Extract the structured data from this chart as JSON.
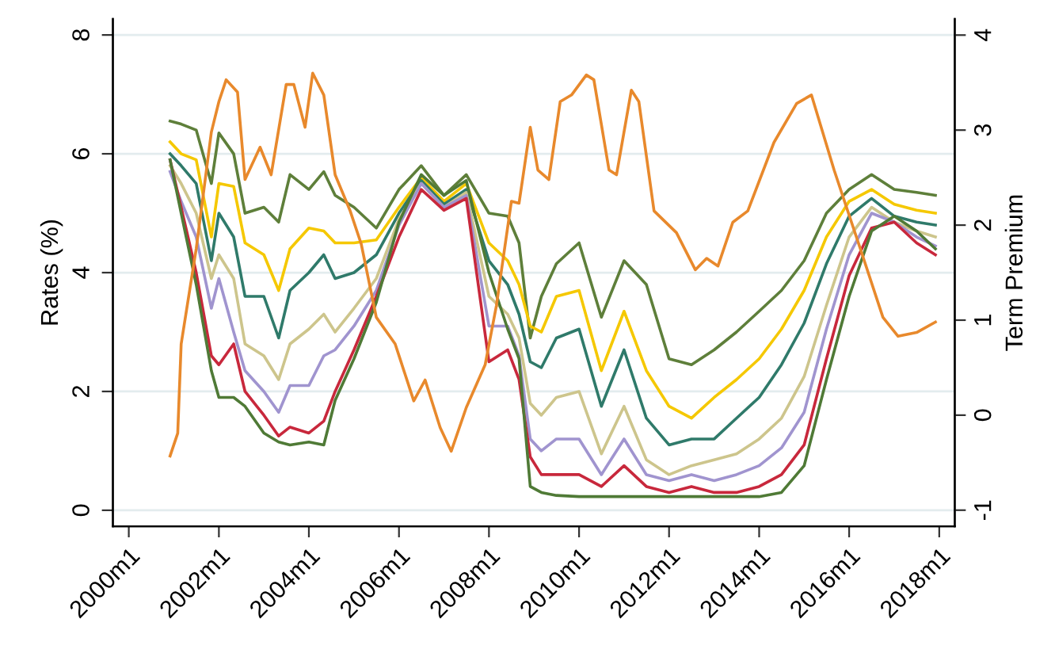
{
  "chart_data": {
    "type": "line",
    "ylabel": "Rates (%)",
    "y2label": "Term Premium",
    "x": [
      "2000-12",
      "2001-03",
      "2001-07",
      "2001-11",
      "2002-01",
      "2002-05",
      "2002-08",
      "2003-01",
      "2003-05",
      "2003-08",
      "2004-01",
      "2004-05",
      "2004-08",
      "2005-01",
      "2005-07",
      "2006-01",
      "2006-07",
      "2007-01",
      "2007-07",
      "2008-01",
      "2008-06",
      "2008-09",
      "2008-12",
      "2009-03",
      "2009-07",
      "2010-01",
      "2010-07",
      "2011-01",
      "2011-07",
      "2012-01",
      "2012-07",
      "2013-01",
      "2013-07",
      "2014-01",
      "2014-07",
      "2015-01",
      "2015-07",
      "2016-01",
      "2016-07",
      "2017-01",
      "2017-07",
      "2017-12"
    ],
    "series": [
      {
        "color": "#5e7f3a",
        "values": [
          6.55,
          6.5,
          6.4,
          5.5,
          6.35,
          6.0,
          5.0,
          5.1,
          4.85,
          5.65,
          5.4,
          5.7,
          5.3,
          5.1,
          4.75,
          5.4,
          5.8,
          5.3,
          5.65,
          5.0,
          4.95,
          4.5,
          2.9,
          3.6,
          4.15,
          4.5,
          3.25,
          4.2,
          3.8,
          2.55,
          2.45,
          2.7,
          3.0,
          3.35,
          3.7,
          4.2,
          5.0,
          5.4,
          5.65,
          5.4,
          5.35,
          5.3
        ]
      },
      {
        "color": "#f5c800",
        "values": [
          6.2,
          6.0,
          5.9,
          4.6,
          5.5,
          5.45,
          4.5,
          4.3,
          3.7,
          4.4,
          4.75,
          4.7,
          4.5,
          4.5,
          4.55,
          5.1,
          5.6,
          5.2,
          5.5,
          4.5,
          4.2,
          3.8,
          3.1,
          3.0,
          3.6,
          3.7,
          2.35,
          3.35,
          2.35,
          1.75,
          1.55,
          1.9,
          2.2,
          2.55,
          3.05,
          3.7,
          4.6,
          5.2,
          5.4,
          5.15,
          5.05,
          5.0
        ]
      },
      {
        "color": "#2f7a6a",
        "values": [
          6.0,
          5.8,
          5.5,
          4.2,
          5.0,
          4.6,
          3.6,
          3.6,
          2.9,
          3.7,
          4.0,
          4.3,
          3.9,
          4.0,
          4.3,
          5.0,
          5.55,
          5.15,
          5.4,
          4.2,
          3.8,
          3.3,
          2.5,
          2.4,
          2.9,
          3.05,
          1.75,
          2.7,
          1.55,
          1.1,
          1.2,
          1.2,
          1.55,
          1.9,
          2.45,
          3.15,
          4.15,
          4.95,
          5.25,
          4.95,
          4.85,
          4.8
        ]
      },
      {
        "color": "#cdc58c",
        "values": [
          5.8,
          5.5,
          5.0,
          3.9,
          4.3,
          3.9,
          2.8,
          2.6,
          2.2,
          2.8,
          3.05,
          3.3,
          3.0,
          3.4,
          3.9,
          4.9,
          5.5,
          5.1,
          5.35,
          3.6,
          3.3,
          2.9,
          1.8,
          1.6,
          1.9,
          2.0,
          0.95,
          1.75,
          0.85,
          0.6,
          0.75,
          0.85,
          0.95,
          1.2,
          1.55,
          2.25,
          3.45,
          4.6,
          5.1,
          4.85,
          4.7,
          4.6
        ]
      },
      {
        "color": "#a094cf",
        "values": [
          5.7,
          5.2,
          4.6,
          3.4,
          3.9,
          3.0,
          2.35,
          2.0,
          1.65,
          2.1,
          2.1,
          2.6,
          2.7,
          3.1,
          3.7,
          4.8,
          5.5,
          5.1,
          5.3,
          3.1,
          3.1,
          2.6,
          1.2,
          1.0,
          1.2,
          1.2,
          0.6,
          1.2,
          0.6,
          0.5,
          0.6,
          0.5,
          0.6,
          0.75,
          1.05,
          1.65,
          3.05,
          4.3,
          5.0,
          4.85,
          4.6,
          4.45
        ]
      },
      {
        "color": "#c8283c",
        "values": [
          5.9,
          5.1,
          4.0,
          2.6,
          2.45,
          2.8,
          2.0,
          1.6,
          1.25,
          1.4,
          1.3,
          1.5,
          2.0,
          2.7,
          3.6,
          4.6,
          5.4,
          5.05,
          5.25,
          2.5,
          2.7,
          2.2,
          0.9,
          0.6,
          0.6,
          0.6,
          0.4,
          0.75,
          0.4,
          0.3,
          0.4,
          0.3,
          0.3,
          0.4,
          0.6,
          1.1,
          2.55,
          3.95,
          4.75,
          4.85,
          4.5,
          4.3
        ]
      },
      {
        "color": "#4f7a36",
        "values": [
          5.9,
          5.0,
          3.8,
          2.35,
          1.9,
          1.9,
          1.75,
          1.3,
          1.15,
          1.1,
          1.15,
          1.1,
          1.85,
          2.55,
          3.5,
          4.85,
          5.65,
          5.3,
          5.55,
          4.0,
          3.05,
          2.55,
          0.4,
          0.3,
          0.25,
          0.23,
          0.23,
          0.23,
          0.23,
          0.23,
          0.23,
          0.23,
          0.23,
          0.23,
          0.3,
          0.75,
          2.2,
          3.6,
          4.7,
          4.95,
          4.7,
          4.4
        ]
      },
      {
        "color": "#e8892c",
        "axis": "y2",
        "x": [
          "2000-12",
          "2001-02",
          "2001-03",
          "2001-07",
          "2001-11",
          "2002-01",
          "2002-03",
          "2002-06",
          "2002-08",
          "2002-12",
          "2003-03",
          "2003-07",
          "2003-09",
          "2003-12",
          "2004-02",
          "2004-05",
          "2004-08",
          "2004-12",
          "2005-03",
          "2005-07",
          "2005-12",
          "2006-05",
          "2006-08",
          "2006-12",
          "2007-03",
          "2007-07",
          "2007-12",
          "2008-03",
          "2008-07",
          "2008-09",
          "2008-12",
          "2009-02",
          "2009-05",
          "2009-08",
          "2009-11",
          "2010-03",
          "2010-05",
          "2010-09",
          "2010-11",
          "2011-03",
          "2011-05",
          "2011-09",
          "2012-03",
          "2012-08",
          "2012-11",
          "2013-02",
          "2013-06",
          "2013-10",
          "2014-05",
          "2014-11",
          "2015-03",
          "2015-09",
          "2016-04",
          "2016-10",
          "2017-02",
          "2017-07",
          "2017-12"
        ],
        "values": [
          -0.43,
          -0.19,
          0.75,
          1.75,
          2.98,
          3.3,
          3.53,
          3.4,
          2.48,
          2.82,
          2.53,
          3.48,
          3.48,
          3.03,
          3.6,
          3.37,
          2.53,
          2.15,
          1.8,
          1.03,
          0.75,
          0.15,
          0.37,
          -0.13,
          -0.38,
          0.08,
          0.53,
          1.15,
          2.25,
          2.23,
          3.03,
          2.58,
          2.48,
          3.3,
          3.37,
          3.58,
          3.53,
          2.58,
          2.53,
          3.42,
          3.3,
          2.15,
          1.92,
          1.53,
          1.65,
          1.57,
          2.03,
          2.15,
          2.87,
          3.28,
          3.37,
          2.58,
          1.75,
          1.03,
          0.83,
          0.87,
          0.98
        ]
      }
    ],
    "xlim": [
      "1999-08-25",
      "2018-05-07"
    ],
    "xticks": [
      {
        "value": "2000-01",
        "label": "2000m1"
      },
      {
        "value": "2002-01",
        "label": "2002m1"
      },
      {
        "value": "2004-01",
        "label": "2004m1"
      },
      {
        "value": "2006-01",
        "label": "2006m1"
      },
      {
        "value": "2008-01",
        "label": "2008m1"
      },
      {
        "value": "2010-01",
        "label": "2010m1"
      },
      {
        "value": "2012-01",
        "label": "2012m1"
      },
      {
        "value": "2014-01",
        "label": "2014m1"
      },
      {
        "value": "2016-01",
        "label": "2016m1"
      },
      {
        "value": "2018-01",
        "label": "2018m1"
      }
    ],
    "ylim": [
      -0.27,
      8.27
    ],
    "yticks": [
      0,
      2,
      4,
      6,
      8
    ],
    "y2lim": [
      -1.17,
      4.17
    ],
    "y2ticks": [
      -1,
      0,
      1,
      2,
      3,
      4
    ],
    "grid": "y",
    "legend": false,
    "marker": "none",
    "line_style": "solid"
  }
}
